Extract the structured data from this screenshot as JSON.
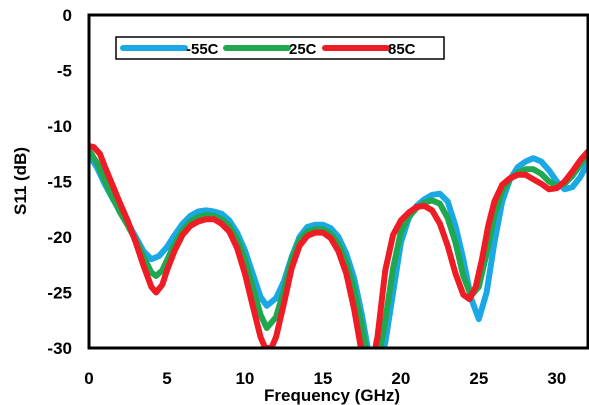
{
  "chart_data": {
    "type": "line",
    "title": "",
    "xlabel": "Frequency (GHz)",
    "ylabel": "S11 (dB)",
    "xlim": [
      0,
      32
    ],
    "ylim": [
      -30,
      0
    ],
    "x_ticks": [
      0,
      5,
      10,
      15,
      20,
      25,
      30
    ],
    "y_ticks": [
      0,
      -5,
      -10,
      -15,
      -20,
      -25,
      -30
    ],
    "x_tick_labels": [
      "0",
      "5",
      "10",
      "15",
      "20",
      "25",
      "30"
    ],
    "y_tick_labels": [
      "0",
      "-5",
      "-10",
      "-15",
      "-20",
      "-25",
      "-30"
    ],
    "grid": false,
    "legend_position": "top-left",
    "series": [
      {
        "name": "-55C",
        "color": "#1BA9E6",
        "points": [
          [
            0,
            -12.6
          ],
          [
            0.5,
            -13.7
          ],
          [
            1,
            -15.2
          ],
          [
            1.5,
            -16.5
          ],
          [
            2,
            -17.7
          ],
          [
            2.5,
            -18.8
          ],
          [
            3,
            -20.0
          ],
          [
            3.5,
            -21.3
          ],
          [
            4,
            -22.0
          ],
          [
            4.5,
            -21.7
          ],
          [
            5,
            -20.9
          ],
          [
            5.5,
            -19.8
          ],
          [
            6,
            -18.8
          ],
          [
            6.5,
            -18.1
          ],
          [
            7,
            -17.7
          ],
          [
            7.5,
            -17.6
          ],
          [
            8,
            -17.7
          ],
          [
            8.5,
            -17.9
          ],
          [
            9,
            -18.5
          ],
          [
            9.5,
            -19.6
          ],
          [
            10,
            -21.2
          ],
          [
            10.5,
            -23.3
          ],
          [
            11,
            -25.4
          ],
          [
            11.4,
            -26.2
          ],
          [
            12,
            -25.5
          ],
          [
            12.5,
            -24.0
          ],
          [
            13,
            -21.8
          ],
          [
            13.5,
            -20.0
          ],
          [
            14,
            -19.1
          ],
          [
            14.5,
            -18.9
          ],
          [
            15,
            -18.9
          ],
          [
            15.5,
            -19.2
          ],
          [
            16,
            -20.0
          ],
          [
            16.5,
            -21.5
          ],
          [
            17,
            -23.7
          ],
          [
            17.5,
            -27.0
          ],
          [
            18,
            -31.0
          ],
          [
            18.5,
            -32.0
          ],
          [
            19,
            -29.5
          ],
          [
            19.5,
            -25.0
          ],
          [
            20,
            -20.5
          ],
          [
            20.5,
            -18.3
          ],
          [
            21,
            -17.2
          ],
          [
            21.5,
            -16.6
          ],
          [
            22,
            -16.2
          ],
          [
            22.5,
            -16.1
          ],
          [
            23,
            -16.8
          ],
          [
            23.5,
            -19.0
          ],
          [
            24,
            -22.0
          ],
          [
            24.5,
            -25.5
          ],
          [
            25,
            -27.4
          ],
          [
            25.5,
            -25.0
          ],
          [
            26,
            -20.5
          ],
          [
            26.5,
            -16.8
          ],
          [
            27,
            -14.8
          ],
          [
            27.5,
            -13.7
          ],
          [
            28,
            -13.2
          ],
          [
            28.5,
            -12.9
          ],
          [
            29,
            -13.2
          ],
          [
            29.5,
            -14.0
          ],
          [
            30,
            -15.0
          ],
          [
            30.5,
            -15.7
          ],
          [
            31,
            -15.5
          ],
          [
            31.5,
            -14.6
          ],
          [
            32,
            -13.3
          ]
        ]
      },
      {
        "name": "25C",
        "color": "#1FA84F",
        "points": [
          [
            0,
            -12.2
          ],
          [
            0.5,
            -13.3
          ],
          [
            1,
            -14.9
          ],
          [
            1.5,
            -16.4
          ],
          [
            2,
            -17.8
          ],
          [
            2.5,
            -19.0
          ],
          [
            3,
            -20.3
          ],
          [
            3.5,
            -21.8
          ],
          [
            4,
            -23.2
          ],
          [
            4.3,
            -23.5
          ],
          [
            4.7,
            -23.0
          ],
          [
            5,
            -22.1
          ],
          [
            5.5,
            -20.6
          ],
          [
            6,
            -19.4
          ],
          [
            6.5,
            -18.6
          ],
          [
            7,
            -18.2
          ],
          [
            7.5,
            -18.0
          ],
          [
            8,
            -18.1
          ],
          [
            8.5,
            -18.4
          ],
          [
            9,
            -19.0
          ],
          [
            9.5,
            -20.2
          ],
          [
            10,
            -22.0
          ],
          [
            10.5,
            -24.5
          ],
          [
            11,
            -27.0
          ],
          [
            11.4,
            -28.2
          ],
          [
            12,
            -27.2
          ],
          [
            12.5,
            -24.8
          ],
          [
            13,
            -22.0
          ],
          [
            13.5,
            -20.3
          ],
          [
            14,
            -19.5
          ],
          [
            14.5,
            -19.3
          ],
          [
            15,
            -19.3
          ],
          [
            15.5,
            -19.7
          ],
          [
            16,
            -20.6
          ],
          [
            16.5,
            -22.3
          ],
          [
            17,
            -24.7
          ],
          [
            17.5,
            -28.0
          ],
          [
            18,
            -32.0
          ],
          [
            18.5,
            -31.5
          ],
          [
            19,
            -27.5
          ],
          [
            19.5,
            -22.8
          ],
          [
            20,
            -19.5
          ],
          [
            20.5,
            -18.2
          ],
          [
            21,
            -17.4
          ],
          [
            21.5,
            -16.9
          ],
          [
            22,
            -16.7
          ],
          [
            22.5,
            -17.0
          ],
          [
            23,
            -18.3
          ],
          [
            23.5,
            -20.5
          ],
          [
            24,
            -23.5
          ],
          [
            24.5,
            -25.3
          ],
          [
            25,
            -24.5
          ],
          [
            25.5,
            -21.5
          ],
          [
            26,
            -18.0
          ],
          [
            26.5,
            -15.9
          ],
          [
            27,
            -14.8
          ],
          [
            27.5,
            -14.2
          ],
          [
            28,
            -13.9
          ],
          [
            28.5,
            -13.9
          ],
          [
            29,
            -14.3
          ],
          [
            29.5,
            -15.0
          ],
          [
            30,
            -15.4
          ],
          [
            30.5,
            -15.2
          ],
          [
            31,
            -14.5
          ],
          [
            31.5,
            -13.5
          ],
          [
            32,
            -12.4
          ]
        ]
      },
      {
        "name": "85C",
        "color": "#EE1C25",
        "points": [
          [
            0,
            -11.8
          ],
          [
            0.3,
            -11.9
          ],
          [
            0.7,
            -12.5
          ],
          [
            1,
            -13.6
          ],
          [
            1.5,
            -15.3
          ],
          [
            2,
            -17.0
          ],
          [
            2.5,
            -18.6
          ],
          [
            3,
            -20.5
          ],
          [
            3.5,
            -22.6
          ],
          [
            4,
            -24.5
          ],
          [
            4.3,
            -25.0
          ],
          [
            4.7,
            -24.3
          ],
          [
            5,
            -23.0
          ],
          [
            5.5,
            -21.2
          ],
          [
            6,
            -19.8
          ],
          [
            6.5,
            -19.0
          ],
          [
            7,
            -18.6
          ],
          [
            7.5,
            -18.4
          ],
          [
            8,
            -18.4
          ],
          [
            8.5,
            -18.8
          ],
          [
            9,
            -19.5
          ],
          [
            9.5,
            -21.0
          ],
          [
            10,
            -23.3
          ],
          [
            10.5,
            -26.2
          ],
          [
            11,
            -29.0
          ],
          [
            11.3,
            -30.0
          ],
          [
            11.7,
            -30.0
          ],
          [
            12,
            -29.0
          ],
          [
            12.5,
            -26.0
          ],
          [
            13,
            -22.8
          ],
          [
            13.5,
            -20.8
          ],
          [
            14,
            -19.9
          ],
          [
            14.5,
            -19.6
          ],
          [
            15,
            -19.6
          ],
          [
            15.5,
            -20.1
          ],
          [
            16,
            -21.3
          ],
          [
            16.5,
            -23.3
          ],
          [
            17,
            -26.5
          ],
          [
            17.5,
            -30.5
          ],
          [
            18,
            -32.5
          ],
          [
            18.5,
            -29.0
          ],
          [
            19,
            -23.0
          ],
          [
            19.5,
            -19.8
          ],
          [
            20,
            -18.5
          ],
          [
            20.5,
            -17.8
          ],
          [
            21,
            -17.3
          ],
          [
            21.5,
            -17.2
          ],
          [
            22,
            -17.6
          ],
          [
            22.5,
            -18.8
          ],
          [
            23,
            -20.8
          ],
          [
            23.5,
            -23.3
          ],
          [
            24,
            -25.2
          ],
          [
            24.4,
            -25.6
          ],
          [
            24.8,
            -24.5
          ],
          [
            25.2,
            -22.0
          ],
          [
            25.6,
            -19.0
          ],
          [
            26,
            -16.8
          ],
          [
            26.5,
            -15.3
          ],
          [
            27,
            -14.7
          ],
          [
            27.5,
            -14.4
          ],
          [
            28,
            -14.4
          ],
          [
            28.5,
            -14.8
          ],
          [
            29,
            -15.2
          ],
          [
            29.5,
            -15.7
          ],
          [
            30,
            -15.6
          ],
          [
            30.5,
            -15.0
          ],
          [
            31,
            -14.1
          ],
          [
            31.5,
            -13.1
          ],
          [
            32,
            -12.3
          ]
        ]
      }
    ]
  }
}
